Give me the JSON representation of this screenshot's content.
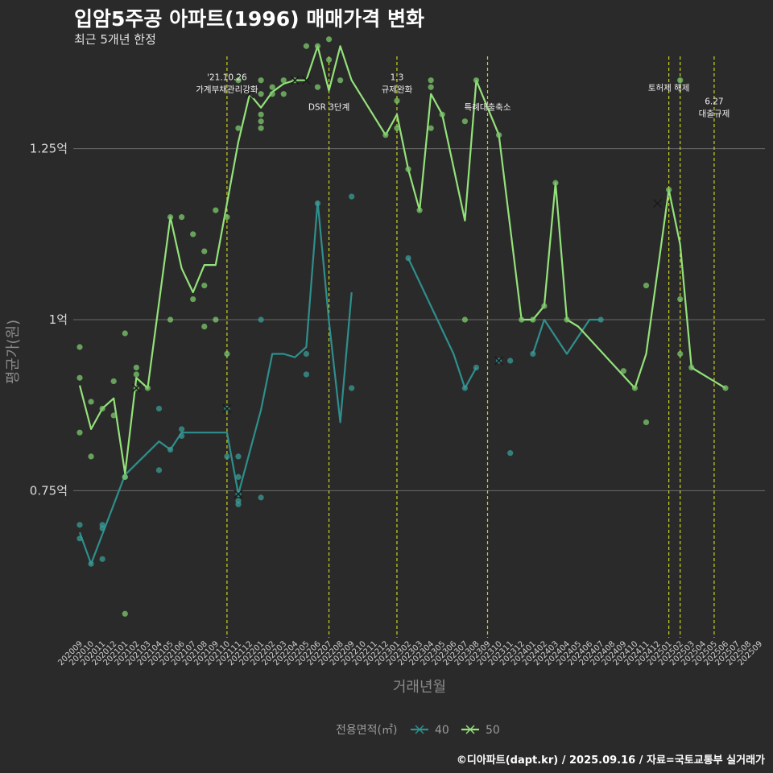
{
  "header": {
    "title": "입암5주공 아파트(1996) 매매가격 변화",
    "subtitle": "최근 5개년 한정"
  },
  "footer": "©디아파트(dapt.kr) / 2025.09.16 / 자료=국토교통부 실거래가",
  "colors": {
    "background": "#2b2a2a",
    "series40": "#2e8f8c",
    "series50": "#93e27a",
    "dot40": "#3a9c97",
    "dot50": "#7cc96c",
    "vline": "#c8d21e",
    "grid": "#6b6b6b"
  },
  "chart_data": {
    "type": "line",
    "xlabel": "거래년월",
    "ylabel": "평균가(원)",
    "ylim": [
      0.535,
      1.385
    ],
    "y_ticks": [
      {
        "value": 0.75,
        "label": "0.75억"
      },
      {
        "value": 1.0,
        "label": "1억"
      },
      {
        "value": 1.25,
        "label": "1.25억"
      }
    ],
    "categories": [
      "202009",
      "202010",
      "202011",
      "202012",
      "202101",
      "202102",
      "202103",
      "202104",
      "202105",
      "202106",
      "202107",
      "202108",
      "202109",
      "202110",
      "202111",
      "202112",
      "202201",
      "202202",
      "202203",
      "202204",
      "202205",
      "202206",
      "202207",
      "202208",
      "202209",
      "202210",
      "202211",
      "202212",
      "202301",
      "202302",
      "202303",
      "202304",
      "202305",
      "202306",
      "202307",
      "202308",
      "202309",
      "202310",
      "202311",
      "202312",
      "202401",
      "202402",
      "202403",
      "202404",
      "202405",
      "202406",
      "202407",
      "202408",
      "202409",
      "202410",
      "202411",
      "202412",
      "202501",
      "202502",
      "202503",
      "202504",
      "202505",
      "202506",
      "202507",
      "202508",
      "202509"
    ],
    "vlines": [
      {
        "x": 13.0,
        "label": [
          "'21.10.26",
          "가계부채관리강화"
        ],
        "label_y": 1.35
      },
      {
        "x": 22.0,
        "label": [
          "DSR 3단계"
        ],
        "label_y": 1.307
      },
      {
        "x": 28.0,
        "label": [
          "1.3",
          "규제완화"
        ],
        "label_y": 1.35
      },
      {
        "x": 36.0,
        "label": [
          "특례대출축소"
        ],
        "label_y": 1.307
      },
      {
        "x": 52.0,
        "label": [
          "토허제 해제"
        ],
        "label_y": 1.335
      },
      {
        "x": 53.0,
        "label": [],
        "label_y": 1.335
      },
      {
        "x": 56.0,
        "label": [
          "6.27",
          "대출규제"
        ],
        "label_y": 1.315
      }
    ],
    "series": [
      {
        "name": "40",
        "segments": [
          [
            [
              0,
              0.689
            ],
            [
              1,
              0.643
            ],
            [
              4,
              0.773
            ],
            [
              7,
              0.822
            ],
            [
              8,
              0.81
            ],
            [
              9,
              0.835
            ],
            [
              13,
              0.835
            ],
            [
              14,
              0.745
            ],
            [
              16,
              0.868
            ],
            [
              17,
              0.95
            ],
            [
              18,
              0.95
            ],
            [
              19,
              0.945
            ],
            [
              20,
              0.96
            ],
            [
              21,
              1.173
            ],
            [
              22,
              0.998
            ],
            [
              23,
              0.85
            ],
            [
              24,
              1.04
            ]
          ],
          [
            [
              29,
              1.09
            ],
            [
              33,
              0.95
            ],
            [
              34,
              0.9
            ],
            [
              35,
              0.93
            ]
          ],
          [
            [
              40,
              0.95
            ],
            [
              41,
              1.0
            ],
            [
              43,
              0.95
            ],
            [
              45,
              1.0
            ],
            [
              46,
              1.0
            ]
          ]
        ],
        "points": [
          [
            0,
            0.7
          ],
          [
            0,
            0.68
          ],
          [
            1,
            0.643
          ],
          [
            2,
            0.7
          ],
          [
            2,
            0.695
          ],
          [
            2,
            0.65
          ],
          [
            4,
            0.77
          ],
          [
            7,
            0.87
          ],
          [
            7,
            0.78
          ],
          [
            8,
            0.81
          ],
          [
            9,
            0.84
          ],
          [
            9,
            0.83
          ],
          [
            13,
            0.87
          ],
          [
            13,
            0.8
          ],
          [
            14,
            0.8
          ],
          [
            14,
            0.77
          ],
          [
            14,
            0.745
          ],
          [
            14,
            0.735
          ],
          [
            14,
            0.73
          ],
          [
            16,
            0.74
          ],
          [
            16,
            1.0
          ],
          [
            20,
            0.92
          ],
          [
            20,
            0.95
          ],
          [
            21,
            1.17
          ],
          [
            24,
            1.18
          ],
          [
            24,
            0.9
          ],
          [
            29,
            1.09
          ],
          [
            34,
            0.9
          ],
          [
            35,
            0.93
          ],
          [
            37,
            0.94
          ],
          [
            38,
            0.94
          ],
          [
            38,
            0.805
          ],
          [
            40,
            0.95
          ],
          [
            46,
            1.0
          ]
        ],
        "markers": [
          [
            13,
            0.87
          ],
          [
            14,
            0.745
          ],
          [
            37,
            0.94
          ]
        ]
      },
      {
        "name": "50",
        "segments": [
          [
            [
              0,
              0.904
            ],
            [
              1,
              0.84
            ],
            [
              2,
              0.87
            ],
            [
              3,
              0.885
            ],
            [
              4,
              0.775
            ],
            [
              5,
              0.915
            ],
            [
              6,
              0.9
            ],
            [
              8,
              1.15
            ],
            [
              9,
              1.075
            ],
            [
              10,
              1.04
            ],
            [
              11,
              1.08
            ],
            [
              12,
              1.08
            ],
            [
              14,
              1.26
            ],
            [
              15,
              1.33
            ],
            [
              16,
              1.31
            ],
            [
              17,
              1.333
            ],
            [
              18,
              1.345
            ],
            [
              19,
              1.35
            ],
            [
              20,
              1.35
            ],
            [
              21,
              1.4
            ],
            [
              22,
              1.335
            ],
            [
              23,
              1.4
            ],
            [
              24,
              1.35
            ],
            [
              27,
              1.27
            ],
            [
              28,
              1.3
            ],
            [
              29,
              1.22
            ],
            [
              30,
              1.16
            ],
            [
              31,
              1.33
            ],
            [
              32,
              1.3
            ],
            [
              34,
              1.145
            ],
            [
              35,
              1.35
            ],
            [
              37,
              1.27
            ],
            [
              39,
              1.0
            ],
            [
              40,
              1.0
            ],
            [
              41,
              1.02
            ],
            [
              42,
              1.2
            ],
            [
              43,
              1.0
            ],
            [
              44,
              0.99
            ],
            [
              49,
              0.9
            ],
            [
              50,
              0.95
            ],
            [
              52,
              1.19
            ],
            [
              53,
              1.11
            ],
            [
              54,
              0.93
            ],
            [
              57,
              0.9
            ]
          ]
        ],
        "points": [
          [
            0,
            0.96
          ],
          [
            0,
            0.915
          ],
          [
            0,
            0.835
          ],
          [
            1,
            0.88
          ],
          [
            1,
            0.8
          ],
          [
            2,
            0.87
          ],
          [
            3,
            0.91
          ],
          [
            3,
            0.86
          ],
          [
            4,
            0.98
          ],
          [
            4,
            0.77
          ],
          [
            4,
            0.57
          ],
          [
            5,
            0.93
          ],
          [
            5,
            0.92
          ],
          [
            5,
            0.9
          ],
          [
            6,
            0.9
          ],
          [
            8,
            1.15
          ],
          [
            8,
            1.0
          ],
          [
            9,
            1.15
          ],
          [
            10,
            1.125
          ],
          [
            10,
            1.03
          ],
          [
            11,
            1.1
          ],
          [
            11,
            1.05
          ],
          [
            11,
            0.99
          ],
          [
            12,
            1.16
          ],
          [
            12,
            1.0
          ],
          [
            13,
            1.15
          ],
          [
            13,
            0.95
          ],
          [
            14,
            1.28
          ],
          [
            14,
            1.35
          ],
          [
            16,
            1.35
          ],
          [
            16,
            1.3
          ],
          [
            16,
            1.29
          ],
          [
            16,
            1.28
          ],
          [
            16,
            1.33
          ],
          [
            17,
            1.34
          ],
          [
            17,
            1.33
          ],
          [
            18,
            1.35
          ],
          [
            18,
            1.33
          ],
          [
            19,
            1.35
          ],
          [
            20,
            1.4
          ],
          [
            21,
            1.34
          ],
          [
            21,
            1.4
          ],
          [
            22,
            1.41
          ],
          [
            22,
            1.38
          ],
          [
            23,
            1.35
          ],
          [
            27,
            1.27
          ],
          [
            28,
            1.32
          ],
          [
            28,
            1.28
          ],
          [
            29,
            1.22
          ],
          [
            30,
            1.16
          ],
          [
            31,
            1.35
          ],
          [
            31,
            1.34
          ],
          [
            31,
            1.28
          ],
          [
            32,
            1.3
          ],
          [
            34,
            1.29
          ],
          [
            34,
            1.0
          ],
          [
            35,
            1.35
          ],
          [
            37,
            1.27
          ],
          [
            39,
            1.0
          ],
          [
            40,
            1.0
          ],
          [
            41,
            1.02
          ],
          [
            42,
            1.2
          ],
          [
            43,
            1.0
          ],
          [
            48,
            0.925
          ],
          [
            49,
            0.9
          ],
          [
            50,
            1.05
          ],
          [
            50,
            0.85
          ],
          [
            52,
            1.19
          ],
          [
            53,
            1.35
          ],
          [
            53,
            1.03
          ],
          [
            53,
            0.95
          ],
          [
            54,
            0.93
          ],
          [
            57,
            0.9
          ]
        ],
        "markers": [
          [
            5,
            0.9
          ],
          [
            15,
            1.33
          ],
          [
            19,
            1.35
          ],
          [
            20,
            1.35
          ],
          [
            51,
            1.17
          ]
        ]
      }
    ],
    "legend": {
      "title": "전용면적(㎡)",
      "entries": [
        "40",
        "50"
      ],
      "position": "bottom"
    }
  }
}
